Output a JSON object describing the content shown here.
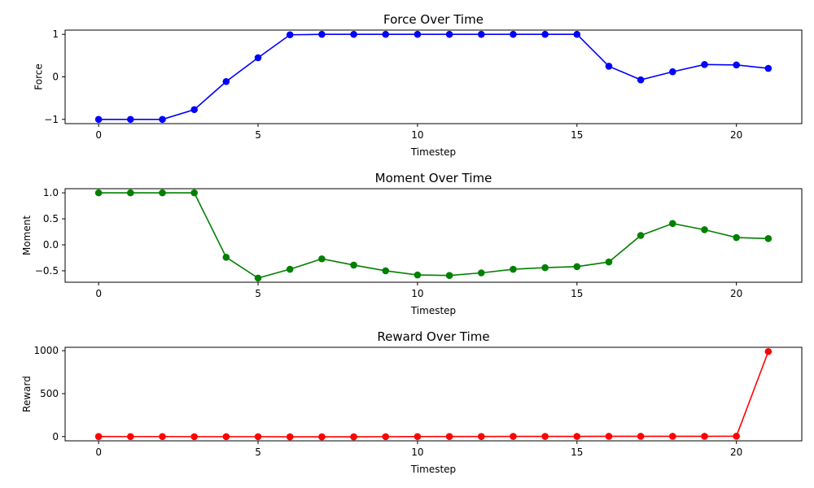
{
  "chart_data": [
    {
      "type": "line",
      "title": "Force Over Time",
      "xlabel": "Timestep",
      "ylabel": "Force",
      "x": [
        0,
        1,
        2,
        3,
        4,
        5,
        6,
        7,
        8,
        9,
        10,
        11,
        12,
        13,
        14,
        15,
        16,
        17,
        18,
        19,
        20,
        21
      ],
      "series": [
        {
          "color": "#0000ff",
          "marker": "circle",
          "values": [
            -1.0,
            -1.0,
            -1.0,
            -0.77,
            -0.11,
            0.45,
            0.99,
            1.0,
            1.0,
            1.0,
            1.0,
            1.0,
            1.0,
            1.0,
            1.0,
            1.0,
            0.25,
            -0.07,
            0.12,
            0.29,
            0.28,
            0.2
          ]
        }
      ],
      "xlim": [
        -1.05,
        22.05
      ],
      "ylim": [
        -1.1,
        1.1
      ],
      "xticks": [
        0,
        5,
        10,
        15,
        20
      ],
      "xtick_labels": [
        "0",
        "5",
        "10",
        "15",
        "20"
      ],
      "yticks": [
        -1,
        0,
        1
      ],
      "ytick_labels": [
        "−1",
        "0",
        "1"
      ],
      "grid": false
    },
    {
      "type": "line",
      "title": "Moment Over Time",
      "xlabel": "Timestep",
      "ylabel": "Moment",
      "x": [
        0,
        1,
        2,
        3,
        4,
        5,
        6,
        7,
        8,
        9,
        10,
        11,
        12,
        13,
        14,
        15,
        16,
        17,
        18,
        19,
        20,
        21
      ],
      "series": [
        {
          "color": "#008000",
          "marker": "circle",
          "values": [
            1.0,
            1.0,
            1.0,
            1.0,
            -0.24,
            -0.64,
            -0.47,
            -0.27,
            -0.39,
            -0.5,
            -0.58,
            -0.59,
            -0.54,
            -0.47,
            -0.44,
            -0.42,
            -0.33,
            0.18,
            0.41,
            0.29,
            0.14,
            0.12
          ]
        }
      ],
      "xlim": [
        -1.05,
        22.05
      ],
      "ylim": [
        -0.72,
        1.08
      ],
      "xticks": [
        0,
        5,
        10,
        15,
        20
      ],
      "xtick_labels": [
        "0",
        "5",
        "10",
        "15",
        "20"
      ],
      "yticks": [
        -0.5,
        0,
        0.5,
        1
      ],
      "ytick_labels": [
        "−0.5",
        "0.0",
        "0.5",
        "1.0"
      ],
      "grid": false
    },
    {
      "type": "line",
      "title": "Reward Over Time",
      "xlabel": "Timestep",
      "ylabel": "Reward",
      "x": [
        0,
        1,
        2,
        3,
        4,
        5,
        6,
        7,
        8,
        9,
        10,
        11,
        12,
        13,
        14,
        15,
        16,
        17,
        18,
        19,
        20,
        21
      ],
      "series": [
        {
          "color": "#ff0000",
          "marker": "circle",
          "values": [
            1,
            0,
            0,
            -1,
            -1,
            -1,
            -3,
            -3,
            -3,
            -1,
            0,
            1,
            1,
            2,
            2,
            2,
            3,
            3,
            3,
            3,
            4,
            990
          ]
        }
      ],
      "xlim": [
        -1.05,
        22.05
      ],
      "ylim": [
        -49.6,
        1039.6
      ],
      "xticks": [
        0,
        5,
        10,
        15,
        20
      ],
      "xtick_labels": [
        "0",
        "5",
        "10",
        "15",
        "20"
      ],
      "yticks": [
        0,
        500,
        1000
      ],
      "ytick_labels": [
        "0",
        "500",
        "1000"
      ],
      "grid": false
    }
  ]
}
